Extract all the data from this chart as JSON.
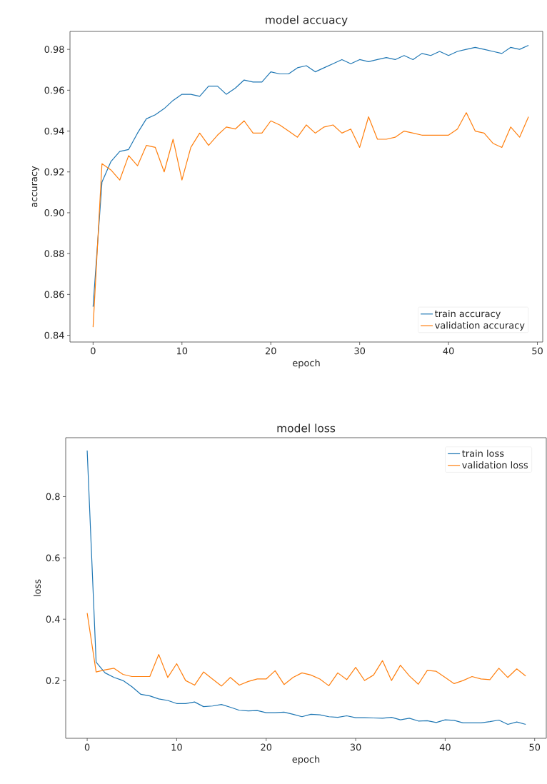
{
  "chart_data": [
    {
      "type": "line",
      "title": "model accuacy",
      "xlabel": "epoch",
      "ylabel": "accuracy",
      "x": [
        0,
        1,
        2,
        3,
        4,
        5,
        6,
        7,
        8,
        9,
        10,
        11,
        12,
        13,
        14,
        15,
        16,
        17,
        18,
        19,
        20,
        21,
        22,
        23,
        24,
        25,
        26,
        27,
        28,
        29,
        30,
        31,
        32,
        33,
        34,
        35,
        36,
        37,
        38,
        39,
        40,
        41,
        42,
        43,
        44,
        45,
        46,
        47,
        48,
        49
      ],
      "series": [
        {
          "name": "train accuracy",
          "color": "#1f77b4",
          "values": [
            0.854,
            0.915,
            0.925,
            0.93,
            0.931,
            0.939,
            0.946,
            0.948,
            0.951,
            0.955,
            0.958,
            0.958,
            0.957,
            0.962,
            0.962,
            0.958,
            0.961,
            0.965,
            0.964,
            0.964,
            0.969,
            0.968,
            0.968,
            0.971,
            0.972,
            0.969,
            0.971,
            0.973,
            0.975,
            0.973,
            0.975,
            0.974,
            0.975,
            0.976,
            0.975,
            0.977,
            0.975,
            0.978,
            0.977,
            0.979,
            0.977,
            0.979,
            0.98,
            0.981,
            0.98,
            0.979,
            0.978,
            0.981,
            0.98,
            0.982
          ]
        },
        {
          "name": "validation accuracy",
          "color": "#ff7f0e",
          "values": [
            0.844,
            0.924,
            0.921,
            0.916,
            0.928,
            0.923,
            0.933,
            0.932,
            0.92,
            0.936,
            0.916,
            0.932,
            0.939,
            0.933,
            0.938,
            0.942,
            0.941,
            0.945,
            0.939,
            0.939,
            0.945,
            0.943,
            0.94,
            0.937,
            0.943,
            0.939,
            0.942,
            0.943,
            0.939,
            0.941,
            0.932,
            0.947,
            0.936,
            0.936,
            0.937,
            0.94,
            0.939,
            0.938,
            0.938,
            0.938,
            0.938,
            0.941,
            0.949,
            0.94,
            0.939,
            0.934,
            0.932,
            0.942,
            0.937,
            0.947
          ]
        }
      ],
      "xlim": [
        -2.6,
        50.6
      ],
      "ylim": [
        0.8367,
        0.9888
      ],
      "xticks": [
        0,
        10,
        20,
        30,
        40,
        50
      ],
      "yticks": [
        0.84,
        0.86,
        0.88,
        {
          "value": 0.9,
          "label": "0.90"
        },
        0.92,
        0.94,
        0.96,
        0.98
      ],
      "legend": "bottom right"
    },
    {
      "type": "line",
      "title": "model loss",
      "xlabel": "epoch",
      "ylabel": "loss",
      "x": [
        0,
        1,
        2,
        3,
        4,
        5,
        6,
        7,
        8,
        9,
        10,
        11,
        12,
        13,
        14,
        15,
        16,
        17,
        18,
        19,
        20,
        21,
        22,
        23,
        24,
        25,
        26,
        27,
        28,
        29,
        30,
        31,
        32,
        33,
        34,
        35,
        36,
        37,
        38,
        39,
        40,
        41,
        42,
        43,
        44,
        45,
        46,
        47,
        48,
        49
      ],
      "series": [
        {
          "name": "train loss",
          "color": "#1f77b4",
          "values": [
            0.95,
            0.26,
            0.225,
            0.21,
            0.2,
            0.18,
            0.155,
            0.15,
            0.14,
            0.135,
            0.125,
            0.125,
            0.13,
            0.115,
            0.117,
            0.122,
            0.113,
            0.103,
            0.101,
            0.102,
            0.095,
            0.095,
            0.097,
            0.09,
            0.082,
            0.09,
            0.088,
            0.082,
            0.08,
            0.085,
            0.079,
            0.079,
            0.078,
            0.077,
            0.08,
            0.072,
            0.077,
            0.068,
            0.069,
            0.063,
            0.072,
            0.07,
            0.062,
            0.062,
            0.062,
            0.066,
            0.071,
            0.057,
            0.065,
            0.057
          ]
        },
        {
          "name": "validation loss",
          "color": "#ff7f0e",
          "values": [
            0.42,
            0.228,
            0.235,
            0.24,
            0.22,
            0.213,
            0.213,
            0.213,
            0.285,
            0.21,
            0.255,
            0.2,
            0.185,
            0.228,
            0.205,
            0.182,
            0.21,
            0.185,
            0.197,
            0.205,
            0.205,
            0.232,
            0.187,
            0.21,
            0.225,
            0.218,
            0.205,
            0.183,
            0.225,
            0.203,
            0.243,
            0.2,
            0.218,
            0.265,
            0.2,
            0.25,
            0.215,
            0.188,
            0.233,
            0.23,
            0.21,
            0.19,
            0.2,
            0.213,
            0.205,
            0.203,
            0.24,
            0.21,
            0.238,
            0.215
          ]
        }
      ],
      "xlim": [
        -2.4,
        51.3
      ],
      "ylim": [
        0.0116,
        0.992
      ],
      "xticks": [
        0,
        10,
        20,
        30,
        40,
        50
      ],
      "yticks": [
        0.2,
        0.4,
        0.6,
        0.8
      ],
      "legend": "top right"
    }
  ]
}
